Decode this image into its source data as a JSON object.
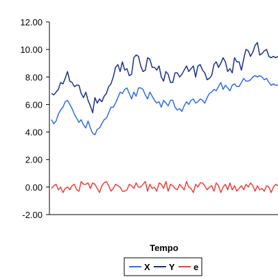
{
  "chart_data": {
    "type": "line",
    "title": "",
    "xlabel": "Tempo",
    "ylabel": "",
    "ylim": [
      -2,
      12
    ],
    "y_ticks": [
      "12.00",
      "10.00",
      "8.00",
      "6.00",
      "4.00",
      "2.00",
      "0.00",
      "-2.00"
    ],
    "grid": false,
    "legend_position": "bottom",
    "x": [
      1,
      2,
      3,
      4,
      5,
      6,
      7,
      8,
      9,
      10,
      11,
      12,
      13,
      14,
      15,
      16,
      17,
      18,
      19,
      20,
      21,
      22,
      23,
      24,
      25,
      26,
      27,
      28,
      29,
      30,
      31,
      32,
      33,
      34,
      35,
      36,
      37,
      38,
      39,
      40,
      41,
      42,
      43,
      44,
      45,
      46,
      47,
      48,
      49,
      50,
      51,
      52,
      53,
      54,
      55,
      56,
      57,
      58,
      59,
      60,
      61,
      62,
      63,
      64,
      65,
      66,
      67,
      68,
      69,
      70,
      71,
      72,
      73,
      74,
      75,
      76,
      77,
      78,
      79,
      80,
      81,
      82,
      83,
      84,
      85,
      86,
      87,
      88,
      89,
      90,
      91,
      92,
      93,
      94,
      95,
      96,
      97,
      98,
      99,
      100
    ],
    "series": [
      {
        "name": "X",
        "color": "#2e6be6",
        "values": [
          4.9,
          4.6,
          4.8,
          5.3,
          5.6,
          5.8,
          6.2,
          6.3,
          6.0,
          5.7,
          5.3,
          5.0,
          4.7,
          4.9,
          4.5,
          4.3,
          4.8,
          4.3,
          3.9,
          3.8,
          4.2,
          4.3,
          4.6,
          4.9,
          5.0,
          5.4,
          5.8,
          5.8,
          6.1,
          6.5,
          6.9,
          6.8,
          7.1,
          7.2,
          6.8,
          6.4,
          6.9,
          6.6,
          7.2,
          7.2,
          7.1,
          6.7,
          6.4,
          6.9,
          6.6,
          6.3,
          6.1,
          6.2,
          5.8,
          6.3,
          6.1,
          5.9,
          6.3,
          6.3,
          5.8,
          5.6,
          5.7,
          5.5,
          5.9,
          6.2,
          6.0,
          6.3,
          6.4,
          6.1,
          6.2,
          6.4,
          6.3,
          6.1,
          6.5,
          6.8,
          6.9,
          7.1,
          7.0,
          7.3,
          7.6,
          7.1,
          7.4,
          7.2,
          7.0,
          7.4,
          7.5,
          7.3,
          7.3,
          7.6,
          7.9,
          7.7,
          7.7,
          7.8,
          8.0,
          8.1,
          8.0,
          8.1,
          8.0,
          7.8,
          7.9,
          7.6,
          7.4,
          7.5,
          7.4,
          7.4
        ]
      },
      {
        "name": "Y",
        "color": "#1a2f85",
        "values": [
          6.8,
          6.7,
          6.9,
          7.1,
          7.6,
          7.5,
          7.9,
          8.4,
          7.7,
          7.6,
          7.3,
          7.4,
          7.4,
          6.8,
          6.5,
          6.9,
          6.3,
          5.9,
          5.4,
          6.5,
          6.1,
          6.4,
          6.2,
          6.6,
          6.8,
          7.3,
          7.5,
          8.0,
          8.7,
          8.9,
          8.4,
          9.1,
          8.5,
          8.6,
          8.1,
          8.2,
          9.4,
          9.6,
          9.5,
          8.8,
          8.4,
          8.5,
          9.4,
          9.3,
          8.7,
          8.7,
          8.5,
          8.8,
          8.0,
          7.7,
          8.4,
          8.2,
          7.6,
          7.6,
          8.3,
          8.3,
          8.0,
          8.2,
          8.5,
          8.8,
          8.4,
          8.6,
          8.8,
          8.0,
          8.8,
          8.9,
          8.5,
          8.3,
          7.8,
          7.9,
          8.1,
          8.9,
          9.1,
          8.7,
          9.0,
          9.4,
          9.1,
          8.4,
          8.6,
          8.3,
          9.4,
          9.1,
          9.1,
          8.5,
          9.3,
          10.0,
          9.9,
          9.5,
          9.8,
          10.3,
          10.5,
          9.6,
          9.7,
          9.9,
          10.0,
          9.5,
          9.4,
          9.5,
          9.4,
          9.5
        ]
      },
      {
        "name": "e",
        "color": "#e8413c",
        "values": [
          -0.1,
          0.1,
          0.2,
          -0.2,
          0.0,
          -0.4,
          -0.1,
          0.0,
          -0.2,
          0.1,
          0.2,
          -0.2,
          -0.3,
          0.4,
          0.2,
          0.2,
          0.3,
          -0.1,
          0.3,
          0.2,
          -0.1,
          -0.4,
          0.1,
          0.3,
          0.4,
          0.1,
          -0.3,
          -0.1,
          0.2,
          0.1,
          0.0,
          -0.3,
          -0.3,
          -0.2,
          0.2,
          0.1,
          -0.1,
          0.3,
          0.0,
          0.0,
          0.2,
          0.4,
          -0.3,
          0.2,
          -0.1,
          0.0,
          -0.3,
          0.3,
          0.2,
          -0.1,
          0.4,
          -0.3,
          0.2,
          0.1,
          -0.1,
          -0.2,
          0.2,
          0.0,
          -0.2,
          0.4,
          0.0,
          -0.1,
          -0.4,
          0.2,
          0.0,
          0.3,
          0.3,
          0.1,
          -0.2,
          0.0,
          0.1,
          -0.3,
          0.3,
          0.1,
          -0.4,
          0.0,
          0.2,
          -0.2,
          0.3,
          -0.2,
          0.1,
          -0.3,
          -0.1,
          0.1,
          -0.2,
          0.2,
          0.0,
          0.3,
          0.1,
          -0.3,
          0.1,
          -0.2,
          -0.1,
          -0.3,
          0.1,
          0.0,
          -0.4,
          0.0,
          0.2,
          0.1
        ]
      }
    ]
  }
}
